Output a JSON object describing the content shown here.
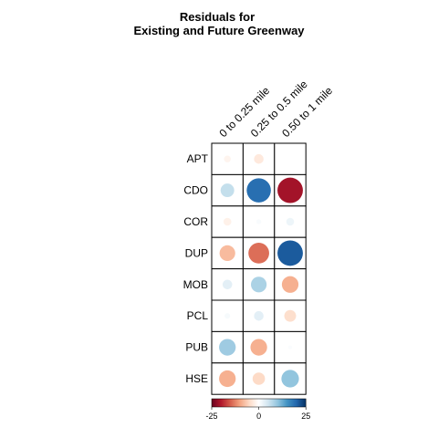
{
  "chart_data": {
    "type": "heatmap",
    "title": [
      "Residuals for",
      "Existing and Future Greenway"
    ],
    "rows": [
      "APT",
      "CDO",
      "COR",
      "DUP",
      "MOB",
      "PCL",
      "PUB",
      "HSE"
    ],
    "columns": [
      "0 to 0.25 mile",
      "0.25 to 0.5 mile",
      "0.50 to 1 mile"
    ],
    "values": [
      [
        -1.5,
        -3.0,
        0.0
      ],
      [
        6.0,
        19.0,
        -21.0
      ],
      [
        -2.0,
        0.8,
        2.0
      ],
      [
        -8.0,
        -14.0,
        21.0
      ],
      [
        3.0,
        8.0,
        -9.0
      ],
      [
        1.0,
        3.0,
        -4.5
      ],
      [
        9.0,
        -9.0,
        0.5
      ],
      [
        -9.0,
        -5.0,
        10.0
      ]
    ],
    "colorbar": {
      "min": -25,
      "max": 25,
      "ticks": [
        "-25",
        "0",
        "25"
      ],
      "colors": [
        "#67001f",
        "#b2182b",
        "#d6604d",
        "#f4a582",
        "#fddbc7",
        "#ffffff",
        "#d1e5f0",
        "#92c5de",
        "#4393c3",
        "#2166ac",
        "#053061"
      ]
    },
    "legend": "bottom"
  }
}
